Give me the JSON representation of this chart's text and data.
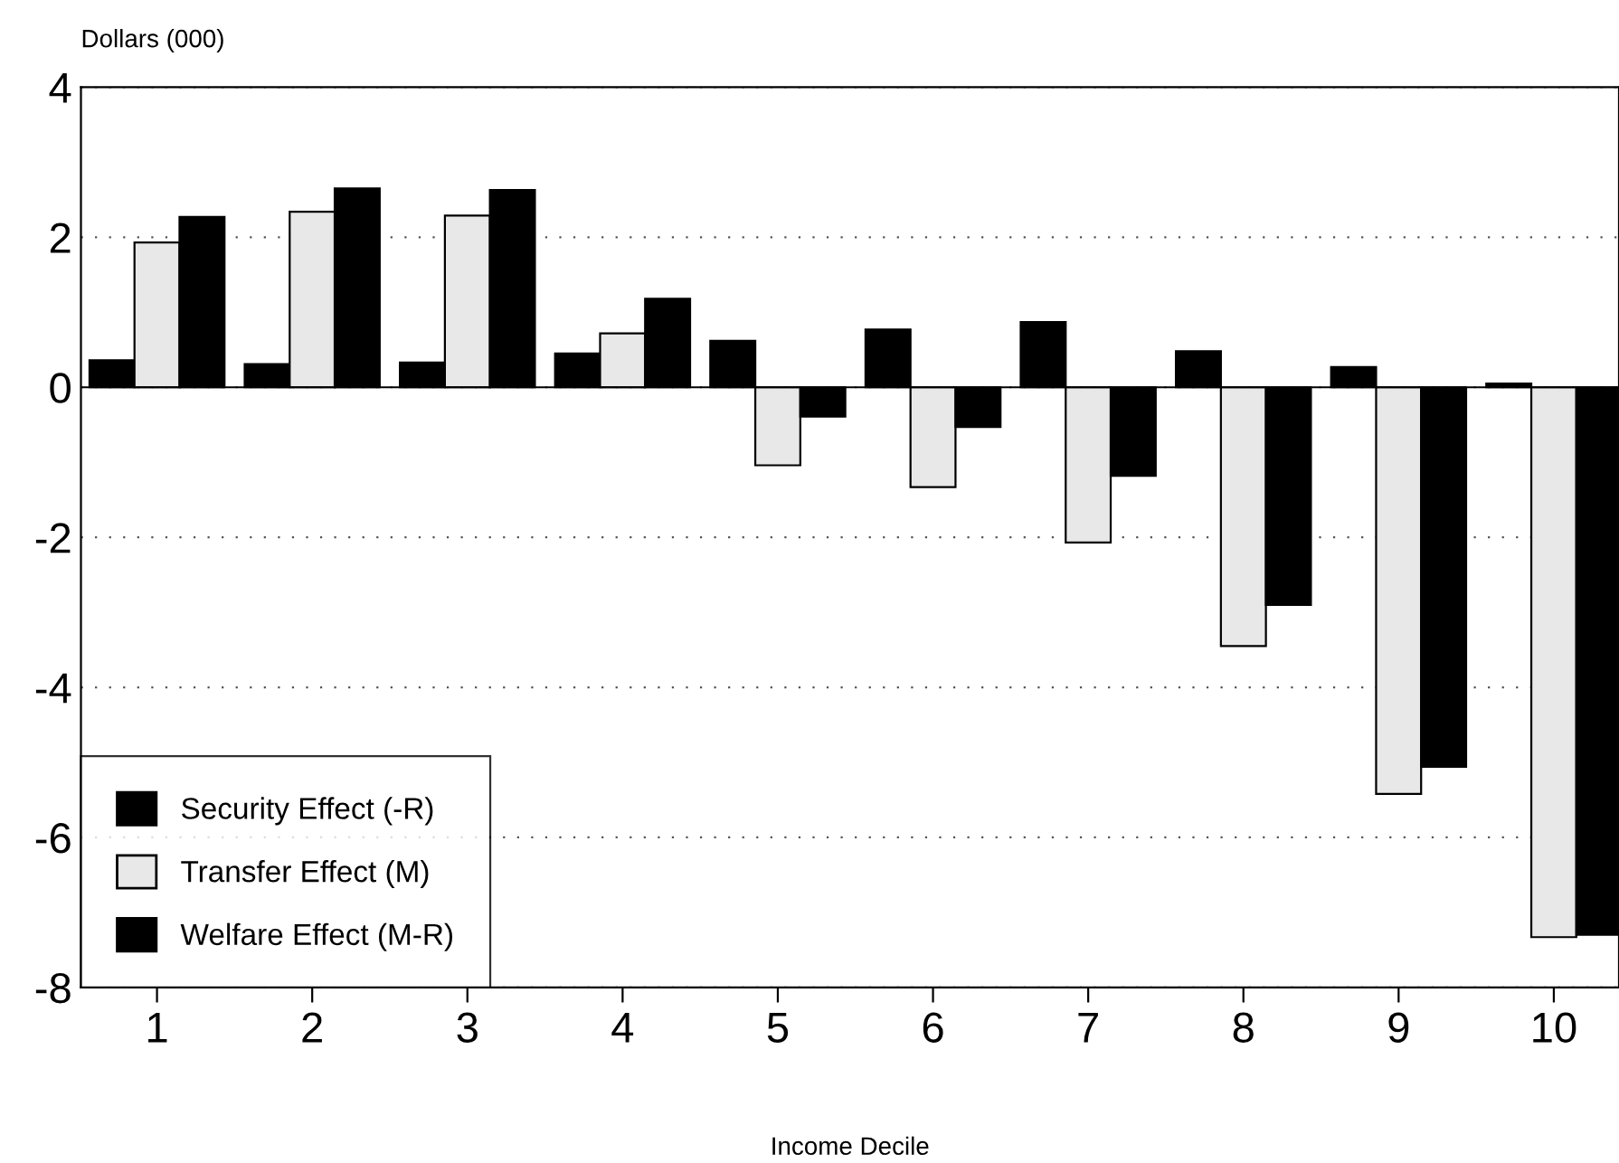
{
  "chart_data": {
    "type": "bar",
    "ylabel": "Dollars (000)",
    "xlabel": "Income Decile",
    "categories": [
      "1",
      "2",
      "3",
      "4",
      "5",
      "6",
      "7",
      "8",
      "9",
      "10"
    ],
    "series": [
      {
        "name": "Security Effect (-R)",
        "color": "#000000",
        "values": [
          0.36,
          0.31,
          0.33,
          0.45,
          0.62,
          0.77,
          0.87,
          0.48,
          0.27,
          0.05
        ]
      },
      {
        "name": "Transfer Effect (M)",
        "color": "#e8e8e8",
        "values": [
          1.93,
          2.34,
          2.29,
          0.72,
          -1.04,
          -1.33,
          -2.07,
          -3.45,
          -5.42,
          -7.33
        ]
      },
      {
        "name": "Welfare Effect (M-R)",
        "color": "#000000",
        "values": [
          2.27,
          2.65,
          2.63,
          1.18,
          -0.39,
          -0.53,
          -1.18,
          -2.9,
          -5.06,
          -7.3
        ]
      }
    ],
    "ylim": [
      -8,
      4
    ],
    "yticks": [
      -8,
      -6,
      -4,
      -2,
      0,
      2,
      4
    ],
    "grid": "y",
    "legend": "bottom left"
  }
}
